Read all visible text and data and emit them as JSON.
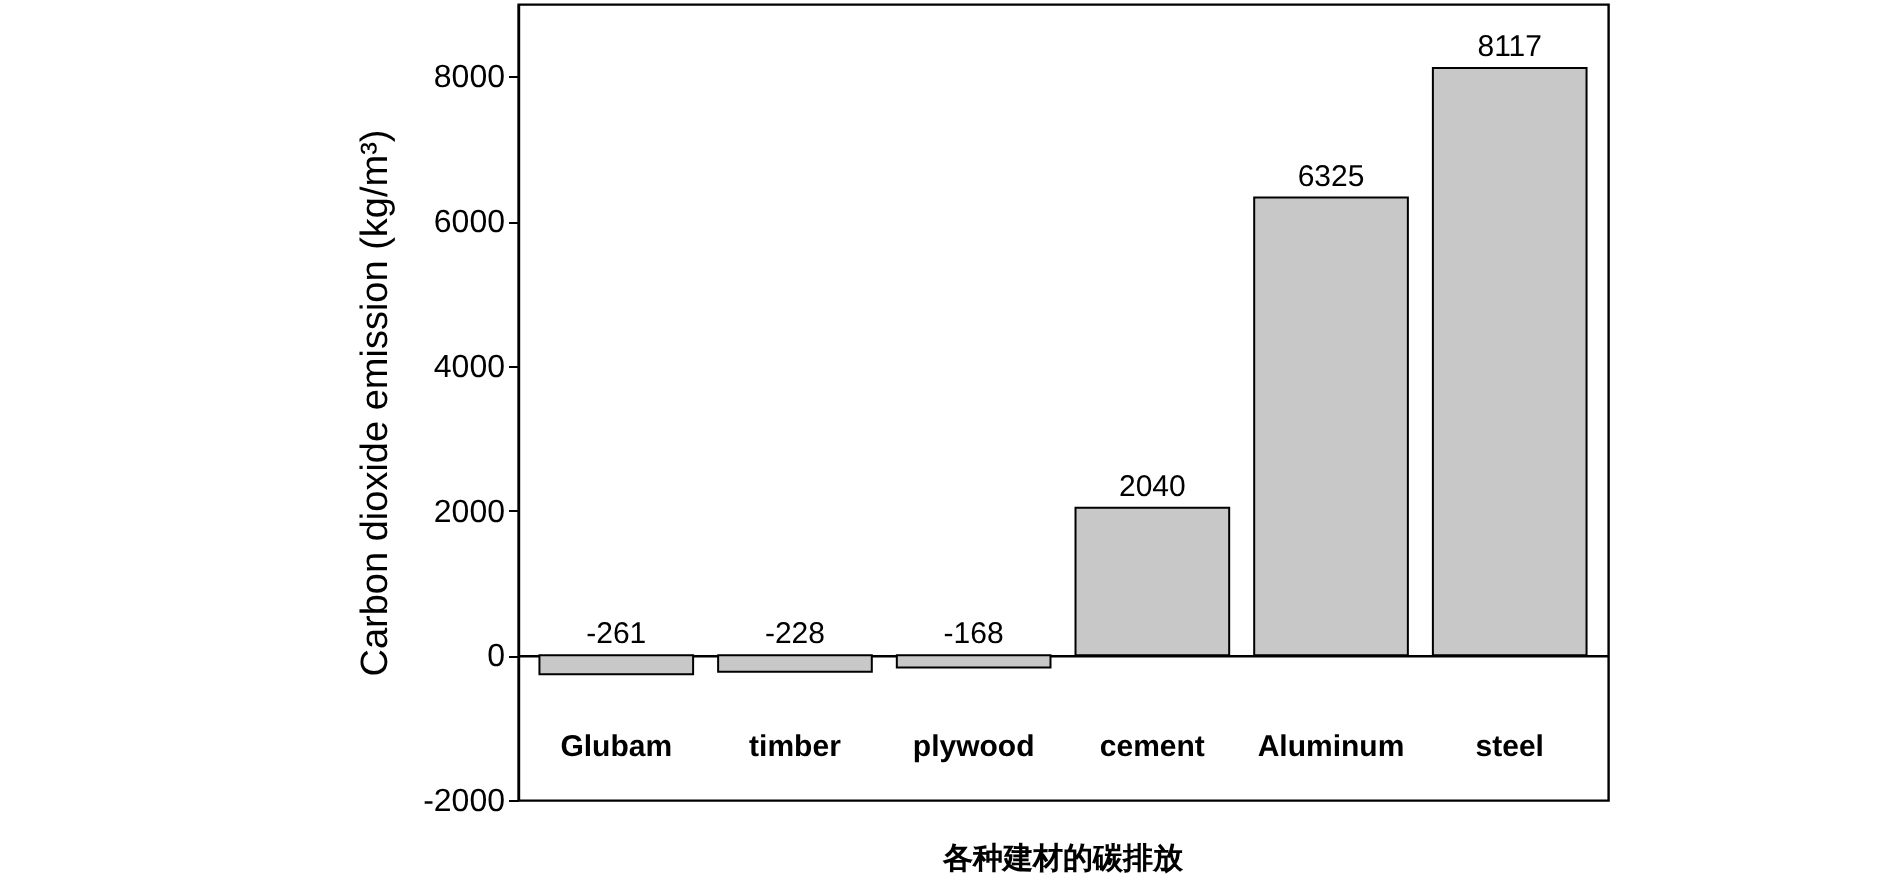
{
  "chart_data": {
    "type": "bar",
    "title": "各种建材的碳排放",
    "ylabel": "Carbon dioxide emission  (kg/m³)",
    "categories": [
      "Glubam",
      "timber",
      "plywood",
      "cement",
      "Aluminum",
      "steel"
    ],
    "values": [
      -261,
      -228,
      -168,
      2040,
      6325,
      8117
    ],
    "color": "#c8c8c8",
    "ylim": [
      -2000,
      9000
    ],
    "yticks": [
      -2000,
      0,
      2000,
      4000,
      6000,
      8000
    ],
    "data_labels": true
  }
}
